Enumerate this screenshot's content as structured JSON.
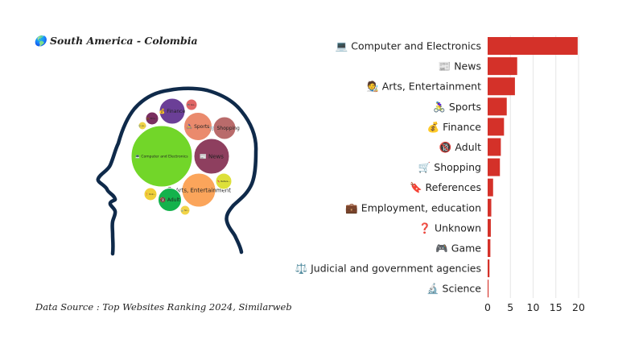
{
  "title": {
    "icon": "globe-americas-icon",
    "text": "South America - Colombia"
  },
  "source": "Data Source : Top Websites Ranking 2024, Similarweb",
  "chart_data": [
    {
      "type": "bar",
      "orientation": "horizontal",
      "categories": [
        "Computer and Electronics",
        "News",
        "Arts, Entertainment",
        "Sports",
        "Finance",
        "Adult",
        "Shopping",
        "References",
        "Employment, education",
        "Unknown",
        "Game",
        "Judicial and government agencies",
        "Science"
      ],
      "category_icons": [
        "💻",
        "📰",
        "🧑‍🎨",
        "🚴‍♀️",
        "💰",
        "🔞",
        "🛒",
        "🔖",
        "💼",
        "❓",
        "🎮",
        "⚖️",
        "🔬"
      ],
      "values": [
        19.8,
        6.5,
        6.0,
        4.2,
        3.6,
        2.9,
        2.7,
        1.2,
        0.8,
        0.7,
        0.6,
        0.4,
        0.2
      ],
      "xlim": [
        0,
        20
      ],
      "xticks": [
        "0",
        "5",
        "10",
        "15",
        "20"
      ],
      "grid": true,
      "color": "#d43129"
    },
    {
      "type": "bubble",
      "container": "head-silhouette",
      "bubbles": [
        {
          "label": "Computer and Electronics",
          "icon": "💻",
          "color": "#72d629",
          "value": 19.8
        },
        {
          "label": "News",
          "icon": "📰",
          "color": "#8e3f5f",
          "value": 6.5
        },
        {
          "label": "Arts, Entertainment",
          "icon": "🧑‍🎨",
          "color": "#fba55b",
          "value": 6.0
        },
        {
          "label": "Sports",
          "icon": "🚴‍♀️",
          "color": "#ea8a6d",
          "value": 4.2
        },
        {
          "label": "Finance",
          "icon": "💰",
          "color": "#6b3f97",
          "value": 3.6
        },
        {
          "label": "Adult",
          "icon": "🔞",
          "color": "#14b24c",
          "value": 2.9
        },
        {
          "label": "Shopping",
          "icon": "🛒",
          "color": "#b96b6b",
          "value": 2.7
        },
        {
          "label": "Refere...",
          "icon": "🔖",
          "color": "#dde03a",
          "value": 1.2
        },
        {
          "label": "Emp...",
          "icon": "💼",
          "color": "#7a2e60",
          "value": 0.8
        },
        {
          "label": "Unk...",
          "icon": "❓",
          "color": "#efd03a",
          "value": 0.7
        },
        {
          "label": "Ga...",
          "icon": "🎮",
          "color": "#e06767",
          "value": 0.6
        },
        {
          "label": "Ju...",
          "icon": "⚖️",
          "color": "#f0d44a",
          "value": 0.4
        },
        {
          "label": "Sc...",
          "icon": "🔬",
          "color": "#f2d447",
          "value": 0.2
        }
      ]
    }
  ]
}
